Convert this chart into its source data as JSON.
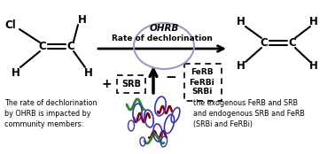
{
  "bg_color": "#ffffff",
  "ohrb_label": "OHRB",
  "ohrb_circle_color": "#9999cc",
  "rate_label": "Rate of dechlorination",
  "srb_label": "SRB",
  "ferb_box_labels": [
    "FeRB",
    "FeRBi",
    "SRBi"
  ],
  "bottom_left_text": "The rate of dechlorination\nby OHRB is impacted by\ncommunity members:",
  "bottom_right_text": "the exogenous FeRB and SRB\nand endogenous SRB and FeRB\n(SRBi and FeRBi)"
}
